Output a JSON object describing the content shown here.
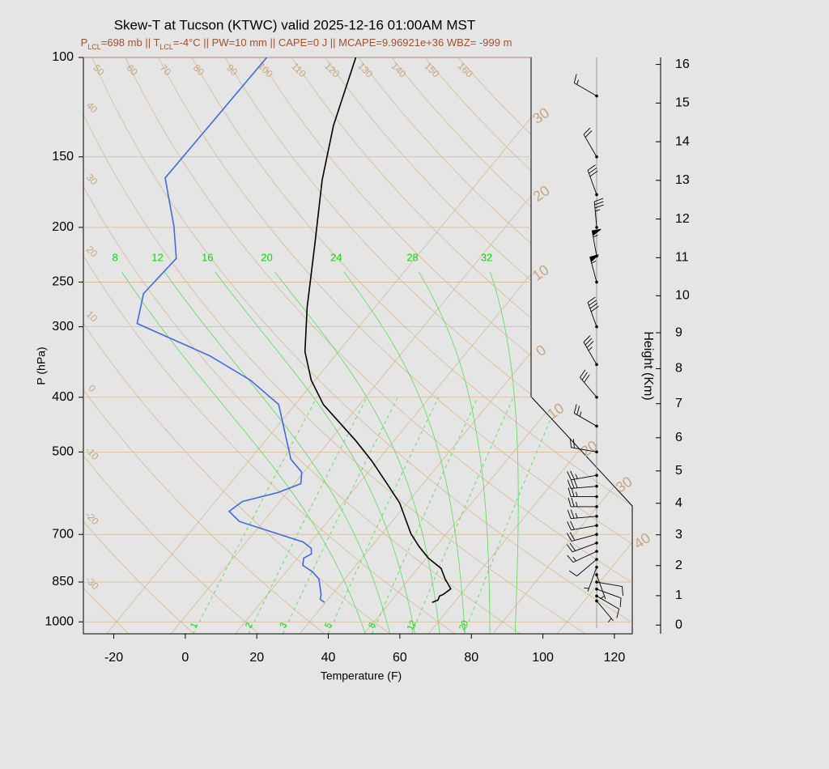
{
  "chart_data": {
    "type": "skewt",
    "title": "Skew-T at Tucson (KTWC) valid 2025-12-16 01:00AM MST",
    "subtitle": [
      "P",
      "LCL",
      "=698 mb || T",
      "LCL",
      "=-4°C || PW=10 mm || CAPE=0 J || MCAPE=9.96921e+36 WBZ= -999 m"
    ],
    "subtitle_color": "#a0522d",
    "xlabel": "Temperature (F)",
    "ylabel": "P (hPa)",
    "y2label": "Height (Km)",
    "xlim": [
      -28.5,
      125
    ],
    "xticks": [
      -20,
      0,
      20,
      40,
      60,
      80,
      100,
      120
    ],
    "ylim": [
      1050,
      100
    ],
    "yticks": [
      100,
      150,
      200,
      250,
      300,
      400,
      500,
      700,
      850,
      1000
    ],
    "log_y": true,
    "grid": true,
    "y2ticks": [
      0,
      1,
      2,
      3,
      4,
      5,
      6,
      7,
      8,
      9,
      10,
      11,
      12,
      13,
      14,
      15,
      16
    ],
    "series": [
      {
        "color": "#000000",
        "pressure": [
          924,
          915,
          900,
          894,
          874,
          840,
          804,
          771,
          736,
          698,
          616,
          573,
          519,
          478,
          412,
          373,
          332,
          277,
          213,
          165,
          132,
          100
        ],
        "values": [
          61.8,
          62.9,
          62.4,
          63.1,
          63.9,
          60.1,
          56.5,
          50.6,
          45.4,
          40.1,
          29.9,
          22.6,
          12.5,
          3.4,
          -14.1,
          -23.1,
          -31.4,
          -41.0,
          -53.6,
          -66.0,
          -75.4,
          -84.8
        ]
      },
      {
        "color": "#4169e1",
        "pressure": [
          924,
          912,
          894,
          840,
          815,
          794,
          771,
          758,
          741,
          722,
          664,
          637,
          612,
          590,
          569,
          543,
          515,
          412,
          373,
          338,
          296,
          262,
          227,
          199,
          163.5,
          100
        ],
        "values": [
          31.7,
          29.8,
          28.9,
          24.8,
          21.3,
          17.1,
          15.7,
          16.9,
          15.6,
          11.9,
          -10.7,
          -15.9,
          -14.4,
          -6.6,
          -2.2,
          -4.6,
          -10.6,
          -26.6,
          -40.1,
          -56.9,
          -84.8,
          -89.9,
          -88.8,
          -96.9,
          -110.4,
          -109.7
        ]
      }
    ],
    "dry_adiabats": {
      "color": "#d8b98e",
      "values": [
        -30,
        -20,
        -10,
        0,
        10,
        20,
        30,
        40,
        50,
        60,
        70,
        80,
        90,
        100,
        110,
        120,
        130,
        140,
        150,
        160
      ]
    },
    "isotherms": {
      "color": "#d8b98e",
      "values": [
        {
          "value": -30,
          "label": "30"
        },
        {
          "value": -20,
          "label": "20"
        },
        {
          "value": -10,
          "label": "10"
        },
        0,
        10,
        20,
        30,
        40
      ]
    },
    "moist_adiabats": {
      "color": "#55dd55",
      "values": [
        8,
        12,
        16,
        20,
        24,
        28,
        32
      ]
    },
    "mixing_ratios": {
      "color": "#55dd55",
      "values": [
        1,
        2,
        3,
        5,
        8,
        12,
        20
      ]
    },
    "winds": {
      "color": "#000000",
      "pressure": [
        918,
        900,
        875,
        850,
        825,
        800,
        775,
        750,
        725,
        700,
        675,
        650,
        625,
        600,
        575,
        550,
        500,
        450,
        400,
        350,
        300,
        250,
        225,
        200,
        175,
        150,
        117
      ],
      "direction": [
        140,
        120,
        110,
        100,
        160,
        200,
        230,
        245,
        250,
        255,
        260,
        265,
        270,
        270,
        265,
        260,
        280,
        300,
        320,
        330,
        340,
        345,
        350,
        355,
        340,
        330,
        300
      ],
      "speed": [
        5,
        10,
        10,
        10,
        5,
        5,
        10,
        15,
        20,
        20,
        20,
        25,
        25,
        25,
        30,
        25,
        20,
        25,
        30,
        35,
        40,
        55,
        55,
        35,
        30,
        20,
        15
      ]
    }
  }
}
